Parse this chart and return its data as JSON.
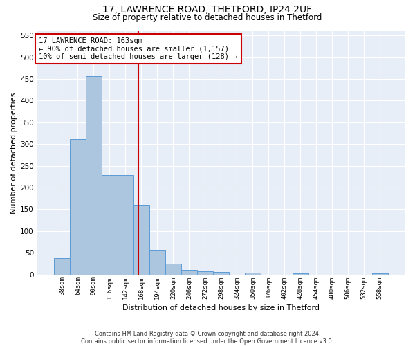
{
  "title1": "17, LAWRENCE ROAD, THETFORD, IP24 2UF",
  "title2": "Size of property relative to detached houses in Thetford",
  "xlabel": "Distribution of detached houses by size in Thetford",
  "ylabel": "Number of detached properties",
  "categories": [
    "38sqm",
    "64sqm",
    "90sqm",
    "116sqm",
    "142sqm",
    "168sqm",
    "194sqm",
    "220sqm",
    "246sqm",
    "272sqm",
    "298sqm",
    "324sqm",
    "350sqm",
    "376sqm",
    "402sqm",
    "428sqm",
    "454sqm",
    "480sqm",
    "506sqm",
    "532sqm",
    "558sqm"
  ],
  "values": [
    38,
    311,
    457,
    228,
    228,
    160,
    57,
    25,
    11,
    8,
    5,
    0,
    4,
    0,
    0,
    2,
    0,
    0,
    0,
    0,
    2
  ],
  "bar_color": "#adc6e0",
  "bar_edge_color": "#5b9bd5",
  "vline_color": "#cc0000",
  "annotation_text": "17 LAWRENCE ROAD: 163sqm\n← 90% of detached houses are smaller (1,157)\n10% of semi-detached houses are larger (128) →",
  "annotation_box_color": "#ffffff",
  "annotation_box_edge": "#cc0000",
  "bg_color": "#e8eef7",
  "grid_color": "#ffffff",
  "fig_bg_color": "#ffffff",
  "footer": "Contains HM Land Registry data © Crown copyright and database right 2024.\nContains public sector information licensed under the Open Government Licence v3.0.",
  "ylim": [
    0,
    560
  ],
  "yticks": [
    0,
    50,
    100,
    150,
    200,
    250,
    300,
    350,
    400,
    450,
    500,
    550
  ]
}
